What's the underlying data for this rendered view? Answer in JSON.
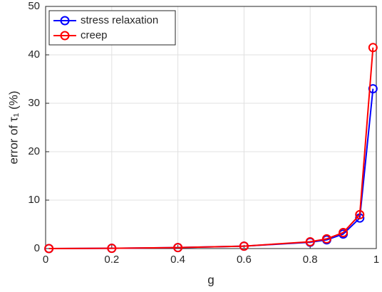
{
  "chart_data": {
    "type": "line",
    "x_label": "g",
    "y_label": "error of τ₁ (%)",
    "x": [
      0.01,
      0.2,
      0.4,
      0.6,
      0.8,
      0.85,
      0.9,
      0.95,
      0.99
    ],
    "series": [
      {
        "name": "stress relaxation",
        "color": "#0000ff",
        "values": [
          0,
          0.05,
          0.2,
          0.5,
          1.3,
          1.8,
          3.0,
          6.3,
          33
        ]
      },
      {
        "name": "creep",
        "color": "#ff0000",
        "values": [
          0,
          0.05,
          0.2,
          0.5,
          1.4,
          2.0,
          3.3,
          7.0,
          41.5
        ]
      }
    ],
    "xlim": [
      0,
      1
    ],
    "xticks": [
      0,
      0.2,
      0.4,
      0.6,
      0.8,
      1
    ],
    "ylim": [
      0,
      50
    ],
    "yticks": [
      0,
      10,
      20,
      30,
      40,
      50
    ],
    "grid": true,
    "legend": "upper-left"
  }
}
